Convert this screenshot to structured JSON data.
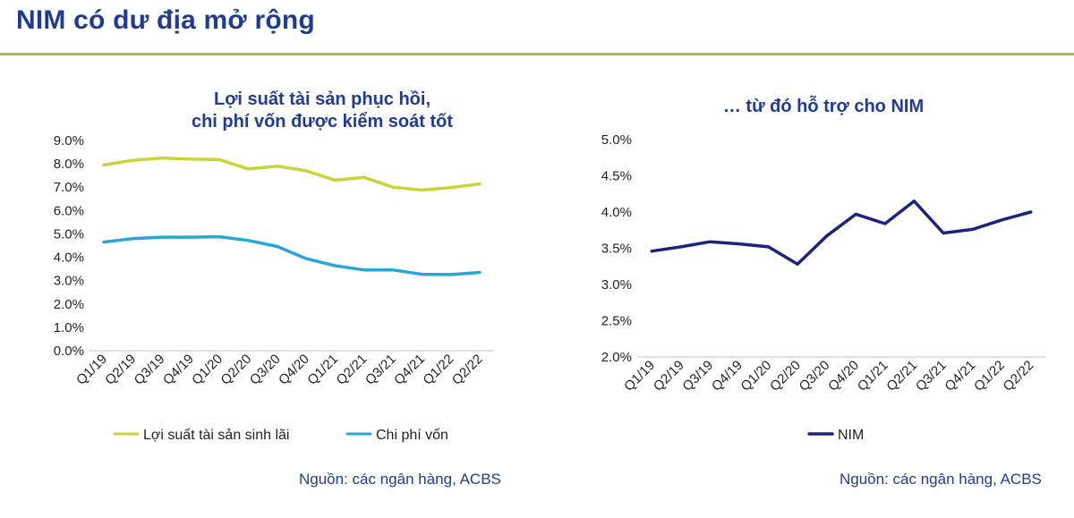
{
  "page": {
    "title": "NIM có dư địa mở rộng"
  },
  "colors": {
    "title": "#1f3b94",
    "rule": "#a8b85a",
    "yield_series": "#c8d43a",
    "cost_series": "#2aa5d6",
    "nim_series": "#1a237e",
    "axis_text": "#222222"
  },
  "chart_data": [
    {
      "type": "line",
      "title_lines": [
        "Lợi suất tài sản phục hồi,",
        "chi phí vốn được kiểm soát tốt"
      ],
      "categories": [
        "Q1/19",
        "Q2/19",
        "Q3/19",
        "Q4/19",
        "Q1/20",
        "Q2/20",
        "Q3/20",
        "Q4/20",
        "Q1/21",
        "Q2/21",
        "Q3/21",
        "Q4/21",
        "Q1/22",
        "Q2/22"
      ],
      "series": [
        {
          "name": "Lợi suất tài sản sinh lãi",
          "values": [
            7.95,
            8.15,
            8.25,
            8.2,
            8.18,
            7.78,
            7.9,
            7.7,
            7.3,
            7.42,
            7.0,
            6.88,
            6.98,
            7.14
          ]
        },
        {
          "name": "Chi phí vốn",
          "values": [
            4.65,
            4.8,
            4.86,
            4.86,
            4.88,
            4.72,
            4.46,
            3.94,
            3.64,
            3.46,
            3.46,
            3.27,
            3.26,
            3.35
          ]
        }
      ],
      "ylim": [
        0,
        9
      ],
      "yticks": [
        "0.0%",
        "1.0%",
        "2.0%",
        "3.0%",
        "4.0%",
        "5.0%",
        "6.0%",
        "7.0%",
        "8.0%",
        "9.0%"
      ],
      "grid": false,
      "legend_position": "bottom",
      "source": "Nguồn: các ngân hàng, ACBS"
    },
    {
      "type": "line",
      "title_lines": [
        "… từ đó hỗ trợ cho NIM"
      ],
      "categories": [
        "Q1/19",
        "Q2/19",
        "Q3/19",
        "Q4/19",
        "Q1/20",
        "Q2/20",
        "Q3/20",
        "Q4/20",
        "Q1/21",
        "Q2/21",
        "Q3/21",
        "Q4/21",
        "Q1/22",
        "Q2/22"
      ],
      "series": [
        {
          "name": "NIM",
          "values": [
            3.46,
            3.52,
            3.59,
            3.56,
            3.52,
            3.28,
            3.67,
            3.97,
            3.84,
            4.15,
            3.71,
            3.76,
            3.89,
            4.0
          ]
        }
      ],
      "ylim": [
        2,
        5
      ],
      "yticks": [
        "2.0%",
        "2.5%",
        "3.0%",
        "3.5%",
        "4.0%",
        "4.5%",
        "5.0%"
      ],
      "grid": false,
      "legend_position": "bottom",
      "source": "Nguồn: các ngân hàng, ACBS"
    }
  ]
}
